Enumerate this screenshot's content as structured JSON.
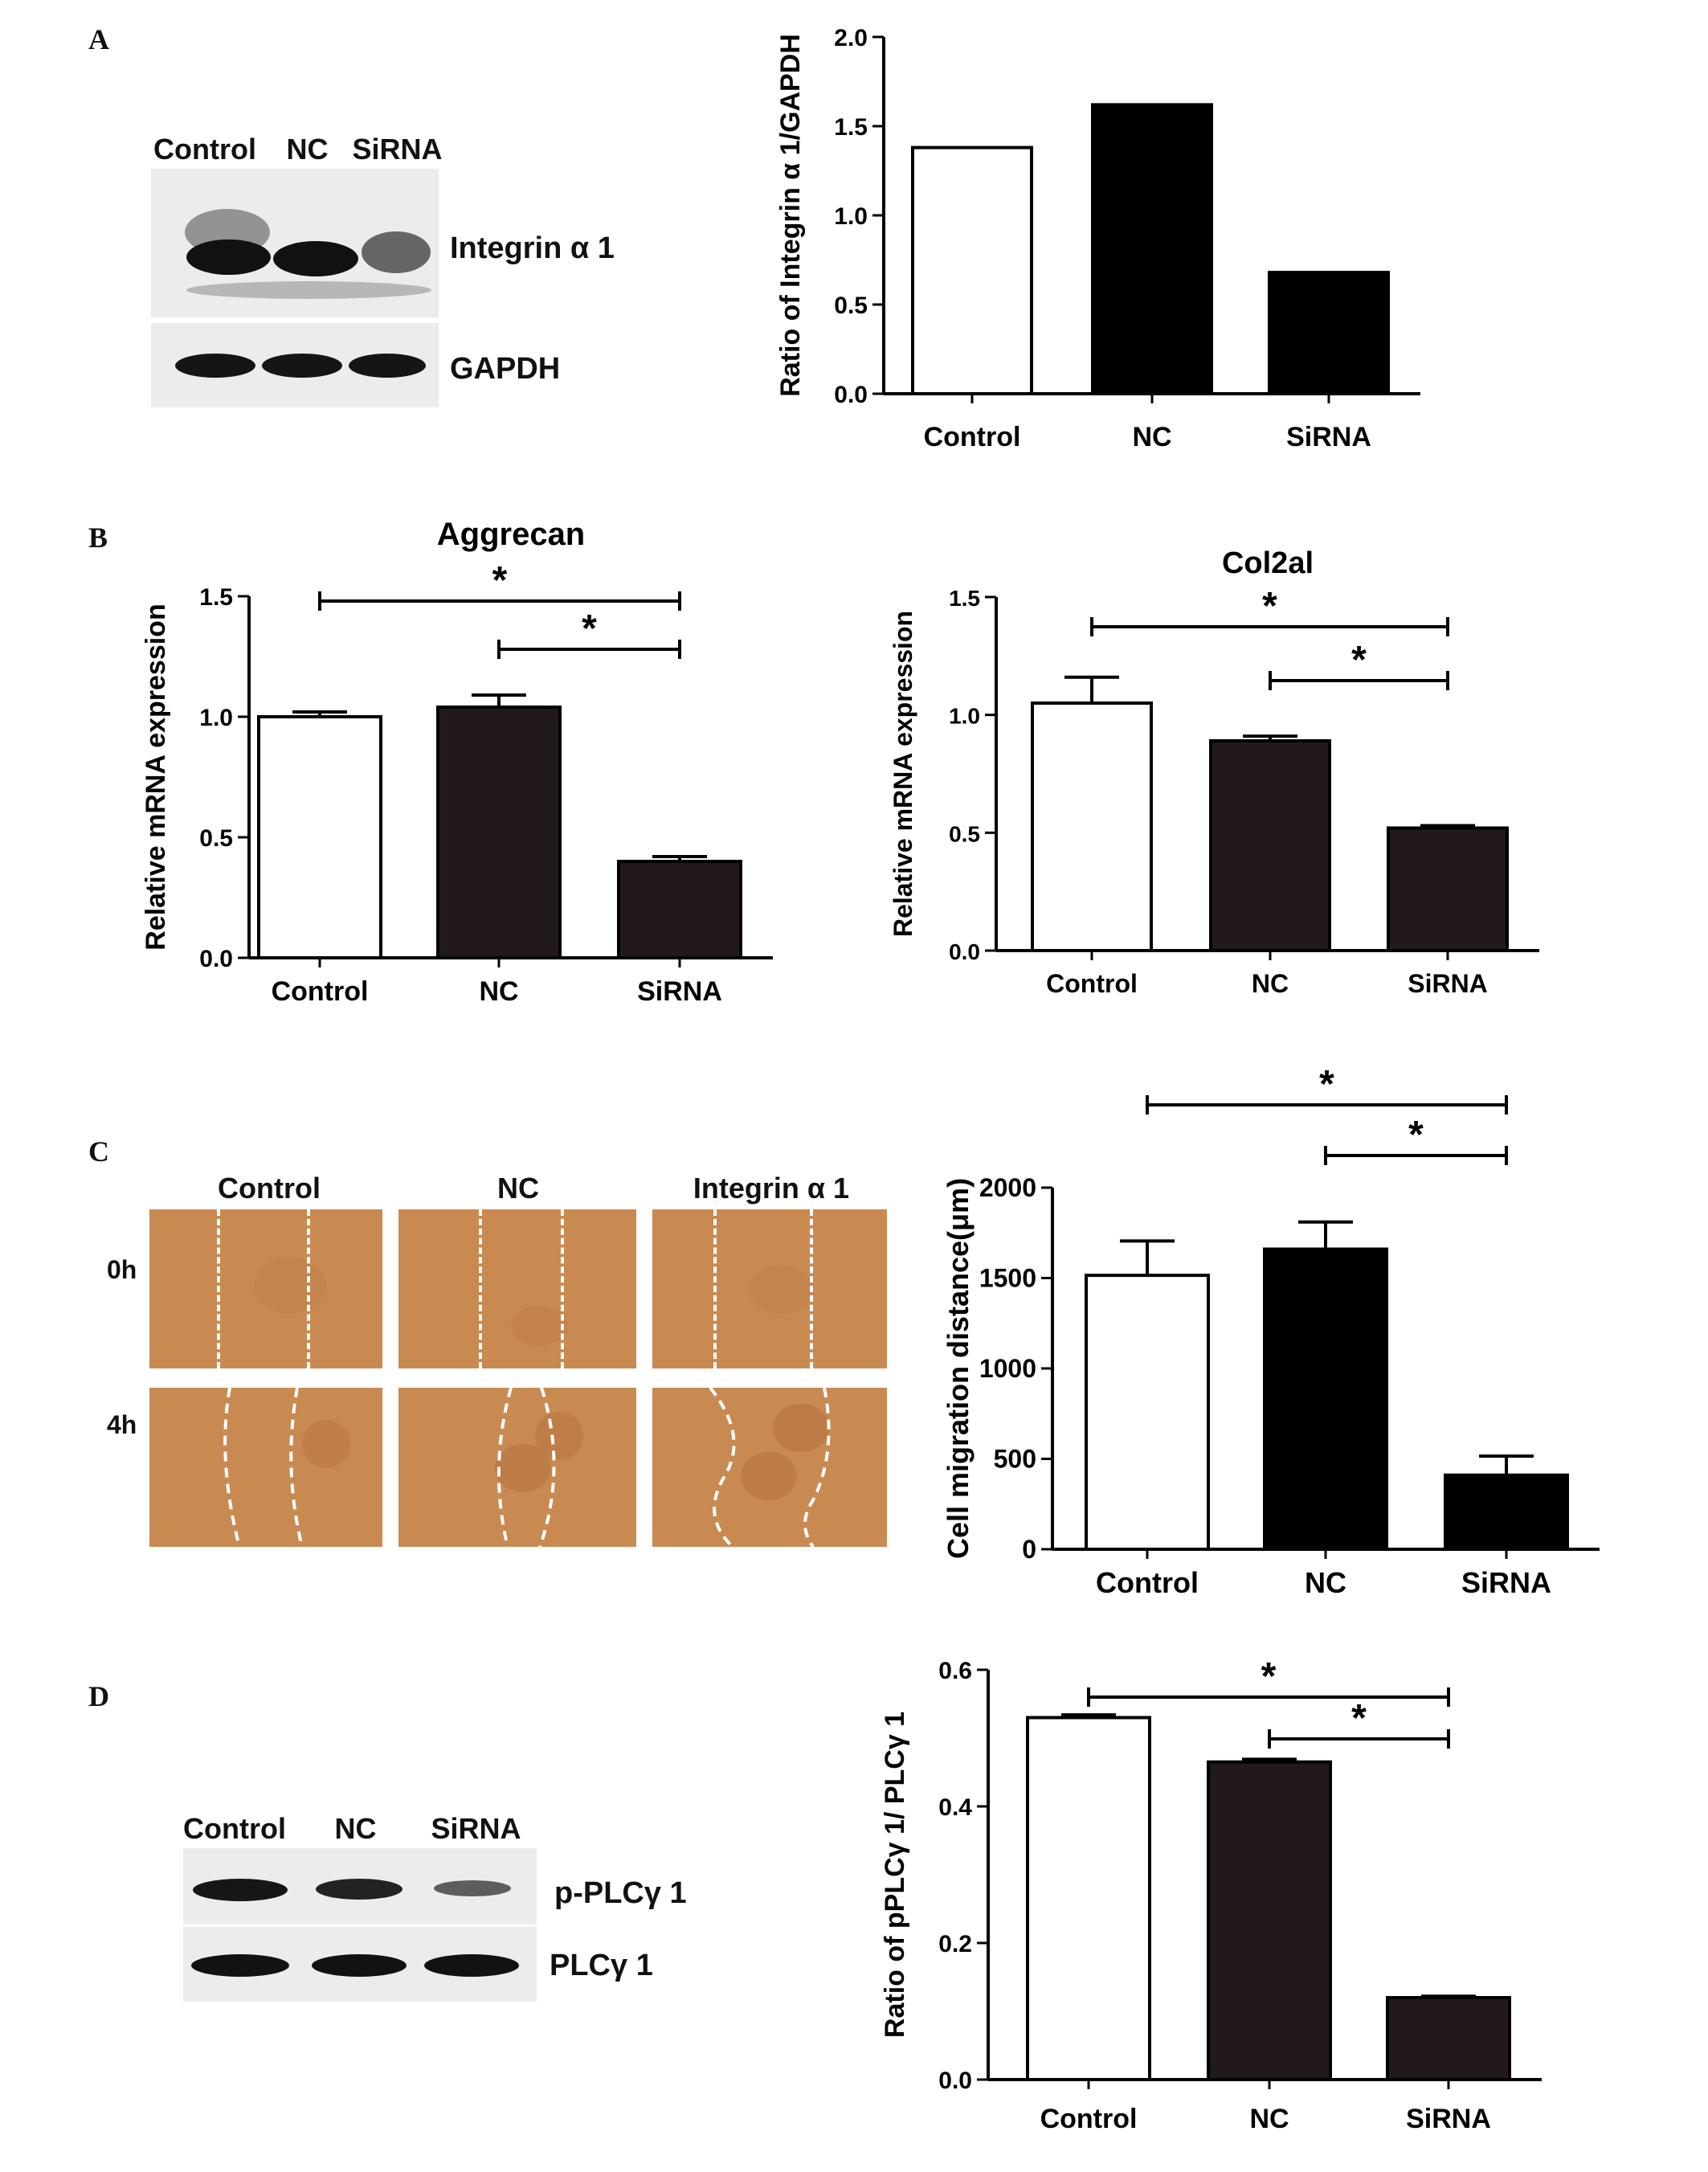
{
  "panels": {
    "a": "A",
    "b": "B",
    "c": "C",
    "d": "D"
  },
  "blotA": {
    "lanes": [
      "Control",
      "NC",
      "SiRNA"
    ],
    "bands": [
      "Integrin α 1",
      "GAPDH"
    ]
  },
  "blotD": {
    "lanes": [
      "Control",
      "NC",
      "SiRNA"
    ],
    "bands": [
      "p-PLCγ 1",
      "PLCγ 1"
    ]
  },
  "migration_images": {
    "columns": [
      "Control",
      "NC",
      "Integrin α 1"
    ],
    "rows": [
      "0h",
      "4h"
    ]
  },
  "star": "*",
  "chart_data": [
    {
      "id": "A",
      "type": "bar",
      "title": "",
      "ylabel": "Ratio of Integrin α 1/GAPDH",
      "categories": [
        "Control",
        "NC",
        "SiRNA"
      ],
      "values": [
        1.38,
        1.62,
        0.68
      ],
      "ylim": [
        0,
        2.0
      ],
      "yticks": [
        "0.0",
        "0.5",
        "1.0",
        "1.5",
        "2.0"
      ],
      "bar_fills": [
        "#ffffff",
        "#000000",
        "#000000"
      ]
    },
    {
      "id": "B1",
      "type": "bar",
      "title": "Aggrecan",
      "ylabel": "Relative mRNA expression",
      "categories": [
        "Control",
        "NC",
        "SiRNA"
      ],
      "values": [
        1.0,
        1.04,
        0.4
      ],
      "errors": [
        0.02,
        0.05,
        0.02
      ],
      "ylim": [
        0,
        1.5
      ],
      "yticks": [
        "0.0",
        "0.5",
        "1.0",
        "1.5"
      ],
      "bar_fills": [
        "#ffffff",
        "#221a1a",
        "#221a1a"
      ],
      "significance": [
        {
          "from": "Control",
          "to": "SiRNA",
          "label": "*"
        },
        {
          "from": "NC",
          "to": "SiRNA",
          "label": "*"
        }
      ]
    },
    {
      "id": "B2",
      "type": "bar",
      "title": "Col2al",
      "ylabel": "Relative mRNA expression",
      "categories": [
        "Control",
        "NC",
        "SiRNA"
      ],
      "values": [
        1.05,
        0.89,
        0.52
      ],
      "errors": [
        0.11,
        0.02,
        0.01
      ],
      "ylim": [
        0,
        1.5
      ],
      "yticks": [
        "0.0",
        "0.5",
        "1.0",
        "1.5"
      ],
      "bar_fills": [
        "#ffffff",
        "#221a1a",
        "#221a1a"
      ],
      "significance": [
        {
          "from": "Control",
          "to": "SiRNA",
          "label": "*"
        },
        {
          "from": "NC",
          "to": "SiRNA",
          "label": "*"
        }
      ]
    },
    {
      "id": "C",
      "type": "bar",
      "title": "",
      "ylabel": "Cell migration distance(μm)",
      "categories": [
        "Control",
        "NC",
        "SiRNA"
      ],
      "values": [
        1515,
        1660,
        410
      ],
      "errors": [
        190,
        150,
        105
      ],
      "ylim": [
        0,
        2000
      ],
      "yticks": [
        "0",
        "500",
        "1000",
        "1500",
        "2000"
      ],
      "bar_fills": [
        "#ffffff",
        "#000000",
        "#000000"
      ],
      "significance": [
        {
          "from": "Control",
          "to": "SiRNA",
          "label": "*"
        },
        {
          "from": "NC",
          "to": "SiRNA",
          "label": "*"
        }
      ]
    },
    {
      "id": "D",
      "type": "bar",
      "title": "",
      "ylabel": "Ratio of pPLCγ 1/ PLCγ 1",
      "categories": [
        "Control",
        "NC",
        "SiRNA"
      ],
      "values": [
        0.53,
        0.465,
        0.12
      ],
      "errors": [
        0.004,
        0.004,
        0.002
      ],
      "ylim": [
        0,
        0.6
      ],
      "yticks": [
        "0.0",
        "0.2",
        "0.4",
        "0.6"
      ],
      "bar_fills": [
        "#ffffff",
        "#221a1a",
        "#221a1a"
      ],
      "significance": [
        {
          "from": "Control",
          "to": "SiRNA",
          "label": "*"
        },
        {
          "from": "NC",
          "to": "SiRNA",
          "label": "*"
        }
      ]
    }
  ]
}
